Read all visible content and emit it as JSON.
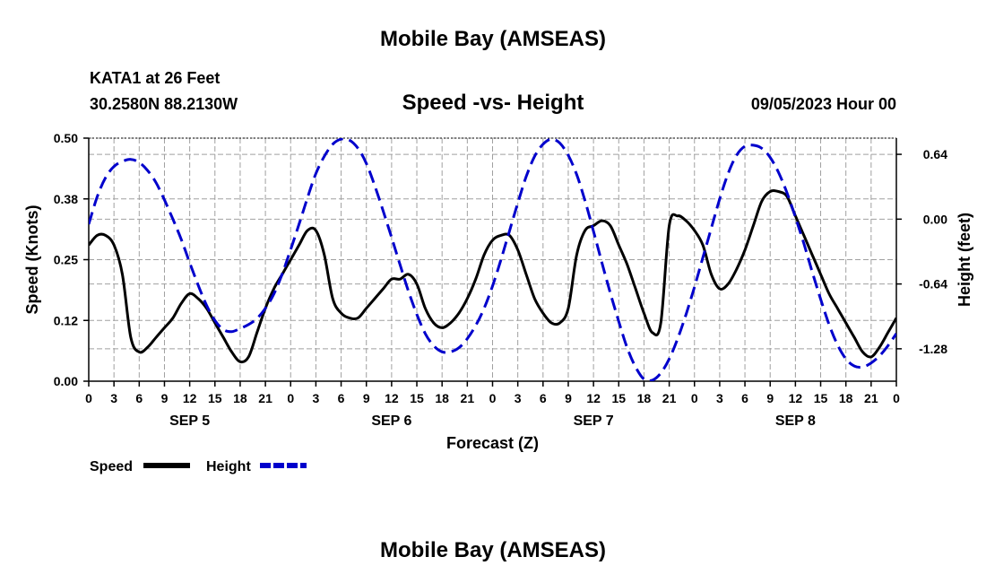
{
  "header": {
    "title": "Mobile Bay (AMSEAS)",
    "station": "KATA1 at 26 Feet",
    "coords": "30.2580N  88.2130W",
    "subtitle": "Speed -vs- Height",
    "timestamp": "09/05/2023 Hour 00",
    "footer_title": "Mobile Bay (AMSEAS)"
  },
  "colors": {
    "speed": "#000000",
    "height": "#0000cc",
    "grid": "#a0a0a0"
  },
  "chart_data": {
    "type": "line",
    "xlabel": "Forecast (Z)",
    "ylabel_left": "Speed (Knots)",
    "ylabel_right": "Height (feet)",
    "x_range": [
      0,
      96
    ],
    "x_ticks": [
      0,
      3,
      6,
      9,
      12,
      15,
      18,
      21,
      24,
      27,
      30,
      33,
      36,
      39,
      42,
      45,
      48,
      51,
      54,
      57,
      60,
      63,
      66,
      69,
      72,
      75,
      78,
      81,
      84,
      87,
      90,
      93,
      96
    ],
    "x_tick_labels": [
      "0",
      "3",
      "6",
      "9",
      "12",
      "15",
      "18",
      "21",
      "0",
      "3",
      "6",
      "9",
      "12",
      "15",
      "18",
      "21",
      "0",
      "3",
      "6",
      "9",
      "12",
      "15",
      "18",
      "21",
      "0",
      "3",
      "6",
      "9",
      "12",
      "15",
      "18",
      "21",
      "0"
    ],
    "day_labels": [
      {
        "x": 12,
        "label": "SEP 5"
      },
      {
        "x": 36,
        "label": "SEP 6"
      },
      {
        "x": 60,
        "label": "SEP 7"
      },
      {
        "x": 84,
        "label": "SEP 8"
      }
    ],
    "left_axis": {
      "range": [
        0,
        0.5
      ],
      "ticks": [
        0,
        0.125,
        0.25,
        0.375,
        0.5
      ],
      "tick_labels": [
        "0.00",
        "0.12",
        "0.25",
        "0.38",
        "0.50"
      ]
    },
    "right_axis": {
      "range": [
        -1.6,
        0.8
      ],
      "ticks": [
        0.64,
        0,
        -0.64,
        -1.28
      ],
      "tick_labels": [
        "0.64",
        "0.00",
        "-0.64",
        "-1.28"
      ]
    },
    "grid": true,
    "legend": [
      {
        "name": "Speed",
        "style": "solid"
      },
      {
        "name": "Height",
        "style": "dashed"
      }
    ],
    "series": [
      {
        "name": "Speed",
        "axis": "left",
        "x": [
          0,
          1,
          2,
          3,
          4,
          5,
          6,
          7,
          8,
          9,
          10,
          11,
          12,
          13,
          14,
          15,
          16,
          17,
          18,
          19,
          20,
          21,
          22,
          23,
          24,
          25,
          26,
          27,
          28,
          29,
          30,
          31,
          32,
          33,
          34,
          35,
          36,
          37,
          38,
          39,
          40,
          41,
          42,
          43,
          44,
          45,
          46,
          47,
          48,
          49,
          50,
          51,
          52,
          53,
          54,
          55,
          56,
          57,
          58,
          59,
          60,
          61,
          62,
          63,
          64,
          65,
          66,
          67,
          68,
          69,
          70,
          71,
          72,
          73,
          74,
          75,
          76,
          77,
          78,
          79,
          80,
          81,
          82,
          83,
          84,
          85,
          86,
          87,
          88,
          89,
          90,
          91,
          92,
          93,
          94,
          95,
          96
        ],
        "y": [
          0.28,
          0.3,
          0.3,
          0.28,
          0.22,
          0.09,
          0.06,
          0.07,
          0.09,
          0.11,
          0.13,
          0.16,
          0.18,
          0.17,
          0.15,
          0.12,
          0.09,
          0.06,
          0.04,
          0.05,
          0.1,
          0.15,
          0.19,
          0.22,
          0.25,
          0.28,
          0.31,
          0.31,
          0.26,
          0.17,
          0.14,
          0.13,
          0.13,
          0.15,
          0.17,
          0.19,
          0.21,
          0.21,
          0.22,
          0.2,
          0.15,
          0.12,
          0.11,
          0.12,
          0.14,
          0.17,
          0.21,
          0.26,
          0.29,
          0.3,
          0.3,
          0.27,
          0.22,
          0.17,
          0.14,
          0.12,
          0.12,
          0.15,
          0.26,
          0.31,
          0.32,
          0.33,
          0.32,
          0.28,
          0.24,
          0.19,
          0.14,
          0.1,
          0.12,
          0.32,
          0.34,
          0.33,
          0.31,
          0.28,
          0.22,
          0.19,
          0.2,
          0.23,
          0.27,
          0.32,
          0.37,
          0.39,
          0.39,
          0.38,
          0.34,
          0.3,
          0.26,
          0.22,
          0.18,
          0.15,
          0.12,
          0.09,
          0.06,
          0.05,
          0.07,
          0.1,
          0.13
        ]
      },
      {
        "name": "Height",
        "axis": "right",
        "x": [
          0,
          1,
          2,
          3,
          4,
          5,
          6,
          7,
          8,
          9,
          10,
          11,
          12,
          13,
          14,
          15,
          16,
          17,
          18,
          19,
          20,
          21,
          22,
          23,
          24,
          25,
          26,
          27,
          28,
          29,
          30,
          31,
          32,
          33,
          34,
          35,
          36,
          37,
          38,
          39,
          40,
          41,
          42,
          43,
          44,
          45,
          46,
          47,
          48,
          49,
          50,
          51,
          52,
          53,
          54,
          55,
          56,
          57,
          58,
          59,
          60,
          61,
          62,
          63,
          64,
          65,
          66,
          67,
          68,
          69,
          70,
          71,
          72,
          73,
          74,
          75,
          76,
          77,
          78,
          79,
          80,
          81,
          82,
          83,
          84,
          85,
          86,
          87,
          88,
          89,
          90,
          91,
          92,
          93,
          94,
          95,
          96
        ],
        "y": [
          -0.05,
          0.22,
          0.41,
          0.52,
          0.57,
          0.59,
          0.56,
          0.48,
          0.36,
          0.19,
          0.0,
          -0.2,
          -0.43,
          -0.65,
          -0.85,
          -1.0,
          -1.09,
          -1.11,
          -1.08,
          -1.04,
          -0.98,
          -0.88,
          -0.74,
          -0.54,
          -0.3,
          -0.05,
          0.21,
          0.45,
          0.62,
          0.74,
          0.79,
          0.78,
          0.7,
          0.55,
          0.33,
          0.08,
          -0.18,
          -0.45,
          -0.71,
          -0.94,
          -1.13,
          -1.25,
          -1.31,
          -1.31,
          -1.27,
          -1.18,
          -1.05,
          -0.88,
          -0.66,
          -0.4,
          -0.12,
          0.16,
          0.42,
          0.62,
          0.74,
          0.79,
          0.75,
          0.63,
          0.44,
          0.18,
          -0.12,
          -0.43,
          -0.73,
          -1.01,
          -1.27,
          -1.46,
          -1.58,
          -1.59,
          -1.52,
          -1.38,
          -1.18,
          -0.94,
          -0.67,
          -0.38,
          -0.09,
          0.2,
          0.45,
          0.63,
          0.72,
          0.73,
          0.7,
          0.61,
          0.46,
          0.26,
          0.02,
          -0.24,
          -0.52,
          -0.79,
          -1.04,
          -1.24,
          -1.38,
          -1.45,
          -1.46,
          -1.42,
          -1.35,
          -1.25,
          -1.13
        ]
      }
    ]
  }
}
